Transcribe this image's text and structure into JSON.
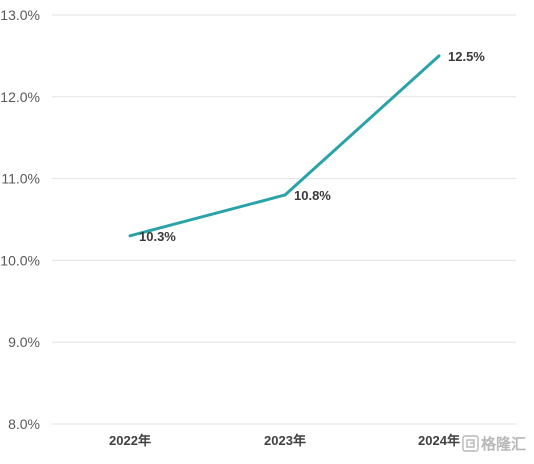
{
  "chart_data": {
    "type": "line",
    "categories": [
      "2022年",
      "2023年",
      "2024年"
    ],
    "series": [
      {
        "values": [
          10.3,
          10.8,
          12.5
        ],
        "data_labels": [
          "10.3%",
          "10.8%",
          "12.5%"
        ]
      }
    ],
    "yticks": [
      "8.0%",
      "9.0%",
      "10.0%",
      "11.0%",
      "12.0%",
      "13.0%"
    ],
    "ylim": [
      8.0,
      13.0
    ],
    "grid": true,
    "legend": "none",
    "line_color": "#2aa3a8"
  },
  "watermark": {
    "text": "格隆汇",
    "icon": "gelonghui-logo-icon"
  }
}
